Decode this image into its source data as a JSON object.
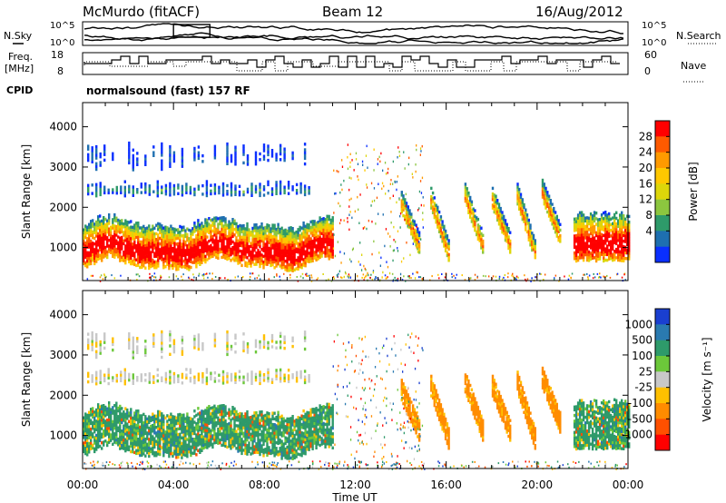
{
  "header": {
    "radar": "McMurdo (fitACF)",
    "beam": "Beam 12",
    "date": "16/Aug/2012",
    "cpid_label": "CPID",
    "cpid_value": "normalsound (fast) 157 RF"
  },
  "nsky_panel": {
    "left_label": "N.Sky",
    "right_label": "N.Search",
    "left_ticks": [
      "10^5",
      "10^0"
    ],
    "right_ticks": [
      "10^5",
      "10^0"
    ]
  },
  "freq_panel": {
    "left_label_1": "Freq.",
    "left_label_2": "[MHz]",
    "right_label": "Nave",
    "left_ticks": [
      "18",
      "8"
    ],
    "right_ticks": [
      "60",
      "0"
    ]
  },
  "chart_data": [
    {
      "type": "heatmap",
      "title": "Power",
      "ylabel": "Slant Range [km]",
      "xlabel": "Time UT",
      "x_ticks": [
        "00:00",
        "04:00",
        "08:00",
        "12:00",
        "16:00",
        "20:00",
        "00:00"
      ],
      "x_range_hours": [
        0,
        24
      ],
      "y_ticks": [
        1000,
        2000,
        3000,
        4000
      ],
      "ylim": [
        180,
        4600
      ],
      "colorbar": {
        "label": "Power [dB]",
        "ticks": [
          "28",
          "24",
          "20",
          "16",
          "12",
          "8",
          "4"
        ],
        "colors": [
          "#ff0000",
          "#ff5a00",
          "#ff9a00",
          "#ffc800",
          "#ddd60a",
          "#8cc63f",
          "#2e9a6a",
          "#1e6fb0",
          "#0a2fff"
        ]
      }
    },
    {
      "type": "heatmap",
      "title": "Velocity",
      "ylabel": "Slant Range [km]",
      "xlabel": "Time UT",
      "x_ticks": [
        "00:00",
        "04:00",
        "08:00",
        "12:00",
        "16:00",
        "20:00",
        "00:00"
      ],
      "x_range_hours": [
        0,
        24
      ],
      "y_ticks": [
        1000,
        2000,
        3000,
        4000
      ],
      "ylim": [
        180,
        4600
      ],
      "colorbar": {
        "label": "Velocity [m s⁻¹]",
        "ticks": [
          "1000",
          "500",
          "100",
          "25",
          "-25",
          "-100",
          "-500",
          "-1000"
        ],
        "colors": [
          "#1a3fd0",
          "#2a7ab0",
          "#2e9a6a",
          "#6cc83a",
          "#c8c8c8",
          "#ffc000",
          "#ff8c00",
          "#ff5000",
          "#ff0000"
        ]
      }
    }
  ],
  "x_axis_title": "Time UT"
}
